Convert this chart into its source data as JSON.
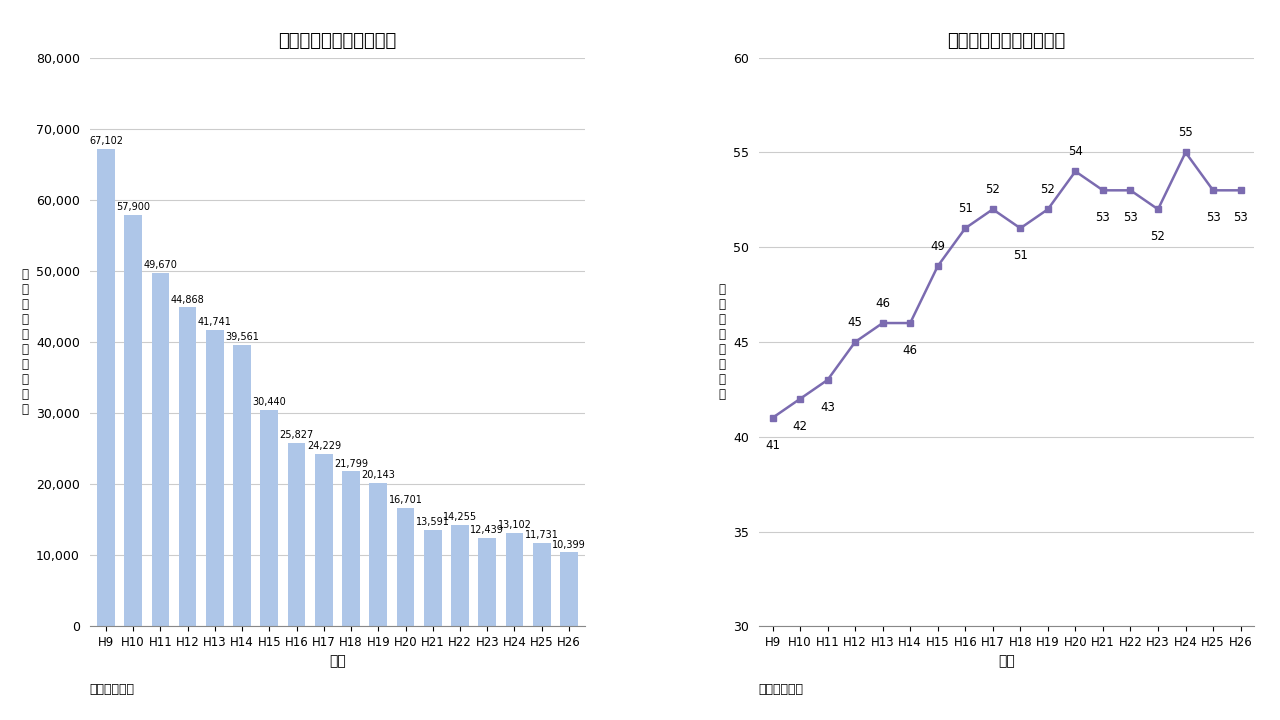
{
  "bar_categories": [
    "H9",
    "H10",
    "H11",
    "H12",
    "H13",
    "H14",
    "H15",
    "H16",
    "H17",
    "H18",
    "H19",
    "H20",
    "H21",
    "H22",
    "H23",
    "H24",
    "H25",
    "H26"
  ],
  "bar_values": [
    67102,
    57900,
    49670,
    44868,
    41741,
    39561,
    30440,
    25827,
    24229,
    21799,
    20143,
    16701,
    13591,
    14255,
    12439,
    13102,
    11731,
    10399
  ],
  "bar_color": "#aec6e8",
  "bar_title": "産業廃棄物の最終処分量",
  "bar_xlabel": "年度",
  "bar_ylabel_chars": [
    "最",
    "終",
    "処",
    "分",
    "量",
    "（",
    "千",
    "ト",
    "ン",
    "）"
  ],
  "bar_ylim": [
    0,
    80000
  ],
  "bar_yticks": [
    0,
    10000,
    20000,
    30000,
    40000,
    50000,
    60000,
    70000,
    80000
  ],
  "bar_source": "出典：環境省",
  "line_categories": [
    "H9",
    "H10",
    "H11",
    "H12",
    "H13",
    "H14",
    "H15",
    "H16",
    "H17",
    "H18",
    "H19",
    "H20",
    "H21",
    "H22",
    "H23",
    "H24",
    "H25",
    "H26"
  ],
  "line_values": [
    41,
    42,
    43,
    45,
    46,
    46,
    49,
    51,
    52,
    51,
    52,
    54,
    53,
    53,
    52,
    55,
    53,
    53
  ],
  "line_color": "#7b6bb0",
  "line_title": "産業廃棄物の再生利用率",
  "line_xlabel": "年度",
  "line_ylabel_chars": [
    "再",
    "生",
    "利",
    "用",
    "率",
    "（",
    "％",
    "）"
  ],
  "line_ylim": [
    30,
    60
  ],
  "line_yticks": [
    30,
    35,
    40,
    45,
    50,
    55,
    60
  ],
  "line_source": "出典：環境省",
  "bg_color": "#ffffff",
  "grid_color": "#cccccc",
  "red_color": "#cc0000"
}
